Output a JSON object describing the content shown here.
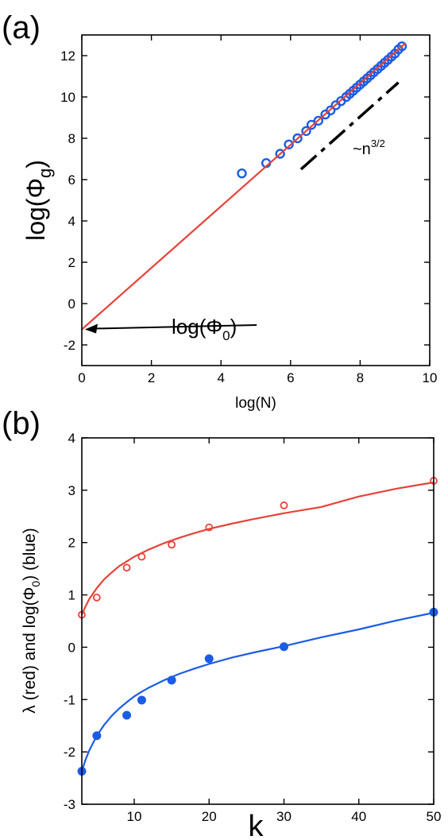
{
  "chart_data": [
    {
      "panel_label": "(a)",
      "type": "scatter",
      "xlabel": "log(N)",
      "ylabel": {
        "main": "log(Φ",
        "sub": "g",
        "close": ")"
      },
      "xlim": [
        0,
        10
      ],
      "ylim": [
        -3,
        13
      ],
      "xticks": [
        0,
        2,
        4,
        6,
        8,
        10
      ],
      "yticks": [
        -2,
        0,
        2,
        4,
        6,
        8,
        10,
        12
      ],
      "grid": false,
      "series": [
        {
          "kind": "scatter",
          "marker": "open-circle",
          "color": "#1a5ce6",
          "x": [
            4.6,
            5.3,
            5.7,
            5.95,
            6.2,
            6.45,
            6.6,
            6.8,
            7.0,
            7.15,
            7.3,
            7.45,
            7.6,
            7.7,
            7.8,
            7.9,
            8.0,
            8.1,
            8.2,
            8.3,
            8.4,
            8.5,
            8.6,
            8.7,
            8.8,
            8.9,
            9.0,
            9.1,
            9.2
          ],
          "y": [
            6.3,
            6.8,
            7.25,
            7.7,
            8.0,
            8.35,
            8.65,
            8.85,
            9.15,
            9.35,
            9.6,
            9.8,
            10.0,
            10.15,
            10.3,
            10.45,
            10.6,
            10.75,
            10.9,
            11.05,
            11.2,
            11.35,
            11.5,
            11.65,
            11.8,
            11.95,
            12.1,
            12.3,
            12.45
          ]
        },
        {
          "kind": "fit-line",
          "color": "#e8423a",
          "x": [
            0,
            9.3
          ],
          "y": [
            -1.25,
            12.6
          ]
        },
        {
          "kind": "reference-line",
          "style": "dash-dot",
          "color": "#000000",
          "x": [
            6.3,
            9.1
          ],
          "y": [
            6.5,
            10.7
          ]
        }
      ],
      "annotations": [
        {
          "kind": "arrow-label",
          "text": {
            "main": "log(Φ",
            "sub": "0",
            "close": ")"
          },
          "target": [
            0,
            -1.25
          ],
          "text_at": [
            5.3,
            -1.0
          ]
        },
        {
          "kind": "slope-label",
          "text": {
            "main": "~n",
            "sup": "3/2"
          },
          "text_at": [
            7.6,
            6.9
          ]
        }
      ]
    },
    {
      "panel_label": "(b)",
      "type": "scatter",
      "xlabel": "k",
      "ylabel": {
        "pre": "λ (red) and log(Φ",
        "sub": "0",
        "post": ") (blue)"
      },
      "xlim": [
        3,
        50
      ],
      "ylim": [
        -3,
        4
      ],
      "xticks": [
        10,
        20,
        30,
        40,
        50
      ],
      "yticks": [
        -3,
        -2,
        -1,
        0,
        1,
        2,
        3,
        4
      ],
      "grid": false,
      "series": [
        {
          "kind": "scatter",
          "marker": "open-circle",
          "color": "#e8423a",
          "x": [
            3,
            5,
            9,
            11,
            15,
            20,
            30,
            50
          ],
          "y": [
            0.62,
            0.95,
            1.52,
            1.73,
            1.96,
            2.29,
            2.71,
            3.18
          ]
        },
        {
          "kind": "fit-curve",
          "color": "#e8423a",
          "x": [
            3,
            3.5,
            4,
            5,
            6,
            7,
            8,
            9,
            10,
            11,
            12,
            14,
            16,
            18,
            20,
            23,
            26,
            30,
            35,
            40,
            45,
            50
          ],
          "y": [
            0.62,
            0.78,
            0.92,
            1.13,
            1.3,
            1.43,
            1.55,
            1.64,
            1.73,
            1.8,
            1.87,
            1.99,
            2.09,
            2.18,
            2.26,
            2.36,
            2.45,
            2.56,
            2.68,
            2.88,
            3.03,
            3.15
          ]
        },
        {
          "kind": "scatter",
          "marker": "filled-circle",
          "color": "#1a5ce6",
          "x": [
            3,
            5,
            9,
            11,
            15,
            20,
            30,
            50
          ],
          "y": [
            -2.37,
            -1.69,
            -1.3,
            -1.01,
            -0.63,
            -0.22,
            0.01,
            0.67
          ]
        },
        {
          "kind": "fit-curve",
          "color": "#1a5ce6",
          "x": [
            3,
            3.5,
            4,
            5,
            6,
            7,
            8,
            9,
            10,
            11,
            12,
            14,
            16,
            18,
            20,
            23,
            26,
            30,
            35,
            40,
            45,
            50
          ],
          "y": [
            -2.37,
            -2.15,
            -1.97,
            -1.69,
            -1.48,
            -1.31,
            -1.17,
            -1.05,
            -0.94,
            -0.85,
            -0.77,
            -0.63,
            -0.51,
            -0.41,
            -0.32,
            -0.2,
            -0.1,
            0.02,
            0.19,
            0.34,
            0.51,
            0.66
          ]
        }
      ],
      "annotations": []
    }
  ]
}
